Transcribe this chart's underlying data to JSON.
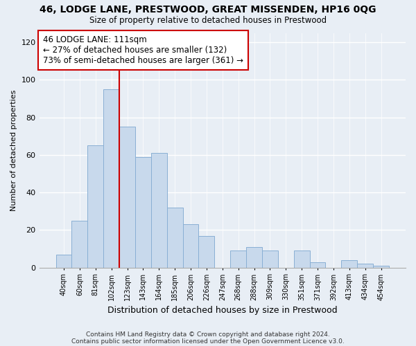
{
  "title": "46, LODGE LANE, PRESTWOOD, GREAT MISSENDEN, HP16 0QG",
  "subtitle": "Size of property relative to detached houses in Prestwood",
  "xlabel": "Distribution of detached houses by size in Prestwood",
  "ylabel": "Number of detached properties",
  "bar_labels": [
    "40sqm",
    "60sqm",
    "81sqm",
    "102sqm",
    "123sqm",
    "143sqm",
    "164sqm",
    "185sqm",
    "206sqm",
    "226sqm",
    "247sqm",
    "268sqm",
    "288sqm",
    "309sqm",
    "330sqm",
    "351sqm",
    "371sqm",
    "392sqm",
    "413sqm",
    "434sqm",
    "454sqm"
  ],
  "bar_values": [
    7,
    25,
    65,
    95,
    75,
    59,
    61,
    32,
    23,
    17,
    0,
    9,
    11,
    9,
    0,
    9,
    3,
    0,
    4,
    2,
    1
  ],
  "bar_color": "#c8d9ec",
  "bar_edge_color": "#89afd4",
  "vline_x": 3.5,
  "vline_color": "#cc0000",
  "annotation_title": "46 LODGE LANE: 111sqm",
  "annotation_line1": "← 27% of detached houses are smaller (132)",
  "annotation_line2": "73% of semi-detached houses are larger (361) →",
  "annotation_box_color": "#ffffff",
  "annotation_box_edge": "#cc0000",
  "ylim": [
    0,
    125
  ],
  "yticks": [
    0,
    20,
    40,
    60,
    80,
    100,
    120
  ],
  "footer1": "Contains HM Land Registry data © Crown copyright and database right 2024.",
  "footer2": "Contains public sector information licensed under the Open Government Licence v3.0.",
  "background_color": "#e8eef5"
}
